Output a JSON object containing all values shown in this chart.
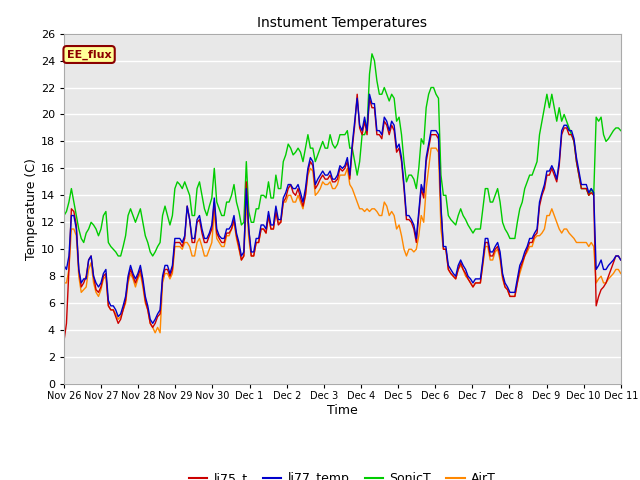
{
  "title": "Instument Temperatures",
  "xlabel": "Time",
  "ylabel": "Temperature (C)",
  "ylim": [
    0,
    26
  ],
  "yticks": [
    0,
    2,
    4,
    6,
    8,
    10,
    12,
    14,
    16,
    18,
    20,
    22,
    24,
    26
  ],
  "bg_color": "#ffffff",
  "plot_bg_color": "#e8e8e8",
  "grid_color": "#ffffff",
  "label_box_text": "EE_flux",
  "label_box_bg": "#ffff99",
  "label_box_edge": "#8b0000",
  "label_box_text_color": "#8b0000",
  "line_colors": {
    "li75_t": "#cc0000",
    "li77_temp": "#0000cc",
    "SonicT": "#00cc00",
    "AirT": "#ff8800"
  },
  "legend_labels": [
    "li75_t",
    "li77_temp",
    "SonicT",
    "AirT"
  ],
  "xtick_labels": [
    "Nov 26",
    "Nov 27",
    "Nov 28",
    "Nov 29",
    "Nov 30",
    "Dec 1",
    "Dec 2",
    "Dec 3",
    "Dec 4",
    "Dec 5",
    "Dec 6",
    "Dec 7",
    "Dec 8",
    "Dec 9",
    "Dec 10",
    "Dec 11"
  ],
  "li75_t": [
    3.2,
    4.5,
    8.5,
    13.0,
    12.8,
    11.8,
    8.5,
    7.2,
    7.5,
    8.0,
    9.2,
    9.5,
    8.0,
    7.0,
    6.8,
    7.2,
    8.0,
    8.2,
    5.8,
    5.5,
    5.5,
    5.0,
    4.5,
    4.8,
    5.5,
    6.2,
    7.8,
    8.5,
    8.0,
    7.5,
    8.0,
    8.5,
    7.5,
    6.2,
    5.5,
    4.5,
    4.2,
    4.5,
    5.0,
    5.2,
    7.8,
    8.5,
    8.5,
    8.0,
    8.5,
    10.5,
    10.5,
    10.5,
    10.2,
    10.8,
    13.2,
    12.2,
    10.5,
    10.5,
    12.0,
    12.2,
    11.2,
    10.5,
    10.5,
    11.0,
    11.5,
    13.5,
    11.2,
    10.8,
    10.5,
    10.5,
    11.2,
    11.2,
    11.5,
    12.2,
    11.0,
    10.2,
    9.2,
    9.5,
    15.0,
    11.5,
    9.5,
    9.5,
    10.5,
    10.5,
    11.5,
    11.5,
    11.2,
    12.5,
    11.5,
    11.5,
    12.8,
    11.8,
    12.0,
    13.5,
    13.8,
    14.5,
    14.8,
    14.2,
    14.0,
    14.5,
    13.8,
    13.2,
    14.0,
    15.8,
    16.5,
    16.2,
    14.5,
    14.8,
    15.2,
    15.5,
    15.2,
    15.2,
    15.5,
    15.0,
    15.0,
    15.2,
    16.0,
    15.8,
    16.0,
    16.5,
    15.2,
    17.5,
    19.2,
    21.5,
    19.0,
    18.5,
    19.5,
    18.5,
    21.2,
    20.5,
    20.5,
    18.5,
    18.5,
    18.2,
    19.5,
    19.2,
    18.5,
    19.2,
    18.8,
    17.2,
    17.5,
    16.5,
    14.5,
    12.2,
    12.2,
    12.0,
    11.5,
    10.5,
    12.5,
    14.5,
    13.8,
    16.5,
    17.5,
    18.5,
    18.5,
    18.5,
    18.2,
    13.0,
    10.0,
    10.0,
    8.5,
    8.2,
    8.0,
    7.8,
    8.5,
    9.0,
    8.5,
    8.2,
    7.8,
    7.5,
    7.2,
    7.5,
    7.5,
    7.5,
    9.0,
    10.5,
    10.5,
    9.5,
    9.5,
    10.0,
    10.2,
    9.5,
    8.0,
    7.2,
    7.0,
    6.5,
    6.5,
    6.5,
    7.5,
    8.5,
    9.0,
    9.5,
    10.0,
    10.5,
    10.5,
    11.0,
    11.2,
    13.2,
    14.0,
    14.5,
    15.5,
    15.5,
    16.0,
    15.5,
    15.0,
    16.2,
    18.5,
    19.0,
    19.0,
    18.5,
    18.5,
    18.0,
    16.5,
    15.5,
    14.5,
    14.5,
    14.5,
    14.0,
    14.2,
    14.0,
    5.8,
    6.5,
    7.0,
    7.2,
    7.5,
    8.0,
    8.5,
    9.0,
    9.5,
    9.5,
    9.2
  ],
  "li77_temp": [
    8.8,
    8.5,
    9.5,
    12.5,
    12.5,
    11.5,
    8.5,
    7.5,
    7.8,
    7.8,
    9.2,
    9.5,
    8.0,
    7.5,
    7.2,
    7.5,
    8.2,
    8.5,
    6.2,
    5.8,
    5.8,
    5.5,
    5.0,
    5.2,
    5.8,
    6.5,
    8.0,
    8.8,
    8.2,
    7.8,
    8.2,
    8.8,
    7.8,
    6.5,
    5.8,
    4.8,
    4.5,
    4.8,
    5.2,
    5.5,
    8.0,
    8.8,
    8.8,
    8.2,
    8.8,
    10.8,
    10.8,
    10.8,
    10.5,
    11.0,
    13.2,
    12.2,
    10.8,
    10.8,
    12.2,
    12.5,
    11.5,
    10.8,
    10.8,
    11.2,
    11.8,
    13.8,
    11.5,
    11.0,
    10.8,
    10.8,
    11.5,
    11.5,
    11.8,
    12.5,
    11.2,
    10.5,
    9.5,
    9.8,
    14.5,
    11.5,
    9.8,
    9.8,
    10.8,
    10.8,
    11.8,
    11.8,
    11.5,
    12.8,
    11.8,
    11.8,
    13.2,
    12.2,
    12.2,
    13.8,
    14.2,
    14.8,
    14.8,
    14.5,
    14.5,
    14.8,
    14.2,
    13.5,
    14.5,
    16.0,
    16.8,
    16.5,
    14.8,
    15.2,
    15.5,
    15.8,
    15.5,
    15.5,
    15.8,
    15.2,
    15.2,
    15.5,
    16.2,
    16.0,
    16.2,
    16.8,
    15.5,
    17.8,
    19.5,
    21.2,
    19.2,
    18.8,
    19.8,
    18.8,
    21.5,
    20.8,
    20.8,
    18.8,
    18.8,
    18.5,
    19.8,
    19.5,
    18.8,
    19.5,
    19.2,
    17.5,
    17.8,
    16.8,
    14.8,
    12.5,
    12.5,
    12.2,
    11.8,
    10.8,
    12.8,
    14.8,
    14.2,
    16.8,
    17.8,
    18.8,
    18.8,
    18.8,
    18.5,
    13.2,
    10.2,
    10.2,
    8.8,
    8.5,
    8.2,
    8.0,
    8.8,
    9.2,
    8.8,
    8.5,
    8.0,
    7.8,
    7.5,
    7.8,
    7.8,
    7.8,
    9.2,
    10.8,
    10.8,
    9.8,
    9.8,
    10.2,
    10.5,
    9.8,
    8.2,
    7.5,
    7.2,
    6.8,
    6.8,
    6.8,
    7.8,
    8.8,
    9.2,
    9.8,
    10.2,
    10.8,
    10.8,
    11.2,
    11.5,
    13.5,
    14.2,
    14.8,
    15.8,
    15.8,
    16.2,
    15.8,
    15.2,
    16.5,
    18.8,
    19.2,
    19.2,
    18.8,
    18.8,
    18.2,
    16.8,
    15.8,
    14.8,
    14.8,
    14.8,
    14.2,
    14.5,
    14.2,
    8.5,
    8.8,
    9.2,
    8.5,
    8.5,
    8.8,
    9.0,
    9.2,
    9.5,
    9.5,
    9.2
  ],
  "SonicT": [
    12.5,
    12.8,
    13.5,
    14.5,
    13.5,
    12.5,
    11.5,
    10.8,
    10.5,
    11.2,
    11.5,
    12.0,
    11.8,
    11.5,
    11.0,
    11.5,
    12.5,
    12.8,
    10.5,
    10.2,
    10.0,
    9.8,
    9.5,
    9.5,
    10.2,
    11.0,
    12.5,
    13.0,
    12.5,
    12.0,
    12.5,
    13.0,
    12.0,
    11.0,
    10.5,
    9.8,
    9.5,
    9.8,
    10.2,
    10.5,
    12.5,
    13.2,
    12.5,
    11.8,
    12.5,
    14.5,
    15.0,
    14.8,
    14.5,
    15.0,
    14.5,
    14.0,
    12.5,
    12.5,
    14.5,
    15.0,
    14.0,
    13.0,
    12.5,
    13.2,
    13.8,
    16.0,
    13.5,
    13.0,
    12.5,
    12.5,
    13.5,
    13.5,
    14.0,
    14.8,
    13.5,
    12.8,
    11.8,
    12.0,
    16.5,
    12.8,
    12.0,
    12.0,
    13.0,
    13.0,
    14.0,
    14.0,
    13.8,
    15.0,
    13.8,
    13.8,
    15.5,
    14.5,
    14.5,
    16.5,
    17.0,
    17.8,
    17.5,
    17.0,
    17.2,
    17.5,
    17.2,
    16.5,
    17.5,
    18.5,
    17.5,
    17.5,
    16.5,
    17.0,
    17.5,
    18.0,
    17.5,
    17.5,
    18.5,
    17.8,
    17.5,
    17.8,
    18.5,
    18.5,
    18.5,
    18.8,
    17.5,
    17.5,
    16.5,
    15.5,
    16.5,
    18.5,
    18.5,
    19.0,
    23.0,
    24.5,
    24.0,
    22.5,
    21.5,
    21.5,
    22.0,
    21.5,
    21.0,
    21.5,
    21.2,
    19.5,
    19.8,
    18.5,
    16.5,
    15.0,
    15.5,
    15.5,
    15.2,
    14.5,
    16.0,
    18.2,
    17.8,
    20.5,
    21.5,
    22.0,
    22.0,
    21.5,
    21.2,
    15.5,
    14.0,
    14.0,
    12.5,
    12.2,
    12.0,
    11.8,
    12.5,
    13.0,
    12.5,
    12.2,
    11.8,
    11.5,
    11.2,
    11.5,
    11.5,
    11.5,
    13.0,
    14.5,
    14.5,
    13.5,
    13.5,
    14.0,
    14.5,
    13.5,
    12.0,
    11.5,
    11.2,
    10.8,
    10.8,
    10.8,
    12.0,
    13.0,
    13.5,
    14.5,
    15.0,
    15.5,
    15.5,
    16.0,
    16.5,
    18.5,
    19.5,
    20.5,
    21.5,
    20.5,
    21.5,
    20.5,
    19.5,
    20.5,
    19.5,
    20.0,
    19.5,
    19.0,
    18.5,
    18.0,
    16.5,
    15.5,
    14.5,
    14.5,
    14.5,
    14.0,
    14.5,
    14.0,
    19.8,
    19.5,
    19.8,
    18.5,
    18.0,
    18.2,
    18.5,
    18.8,
    19.0,
    19.0,
    18.8
  ],
  "AirT": [
    7.5,
    7.5,
    8.5,
    11.5,
    11.5,
    11.0,
    8.0,
    6.8,
    7.0,
    7.2,
    8.5,
    9.0,
    7.5,
    6.8,
    6.5,
    7.0,
    7.8,
    8.0,
    5.8,
    5.5,
    5.5,
    5.2,
    4.8,
    5.0,
    5.5,
    6.0,
    7.5,
    8.2,
    7.8,
    7.2,
    7.8,
    8.2,
    7.2,
    6.0,
    5.5,
    4.5,
    4.2,
    3.8,
    4.2,
    3.8,
    7.5,
    8.2,
    8.2,
    7.8,
    8.2,
    10.2,
    10.2,
    10.2,
    10.0,
    10.5,
    10.5,
    10.2,
    9.5,
    9.5,
    10.5,
    10.8,
    10.2,
    9.5,
    9.5,
    10.0,
    10.5,
    12.8,
    10.8,
    10.5,
    10.2,
    10.2,
    11.0,
    11.0,
    11.5,
    12.0,
    10.8,
    10.0,
    9.2,
    9.5,
    13.5,
    10.8,
    9.5,
    9.5,
    10.5,
    10.5,
    11.5,
    11.5,
    11.2,
    12.5,
    11.5,
    11.5,
    12.8,
    12.0,
    12.0,
    13.5,
    13.5,
    14.0,
    14.0,
    13.5,
    13.5,
    14.0,
    13.5,
    13.0,
    14.0,
    15.5,
    16.0,
    15.8,
    14.0,
    14.2,
    14.5,
    15.0,
    14.8,
    14.8,
    15.0,
    14.5,
    14.5,
    14.8,
    15.5,
    15.5,
    15.5,
    16.0,
    14.8,
    14.5,
    14.0,
    13.5,
    13.0,
    13.0,
    12.8,
    13.0,
    12.8,
    13.0,
    13.0,
    12.8,
    12.5,
    12.5,
    13.5,
    13.2,
    12.5,
    12.8,
    12.5,
    11.5,
    11.8,
    11.0,
    10.0,
    9.5,
    10.0,
    10.0,
    9.8,
    10.0,
    11.0,
    12.5,
    12.0,
    14.5,
    16.0,
    17.5,
    17.5,
    17.5,
    17.2,
    11.5,
    10.0,
    10.0,
    8.5,
    8.2,
    8.0,
    7.8,
    8.5,
    8.8,
    8.5,
    8.0,
    7.8,
    7.5,
    7.2,
    7.5,
    7.5,
    7.5,
    8.8,
    10.2,
    10.2,
    9.2,
    9.2,
    9.8,
    10.0,
    9.2,
    7.8,
    7.2,
    7.0,
    6.5,
    6.5,
    6.5,
    7.5,
    8.2,
    8.8,
    9.5,
    9.8,
    10.2,
    10.2,
    10.8,
    11.0,
    11.0,
    11.2,
    11.5,
    12.5,
    12.5,
    13.0,
    12.5,
    12.0,
    11.5,
    11.2,
    11.5,
    11.5,
    11.2,
    11.0,
    10.8,
    10.5,
    10.5,
    10.5,
    10.5,
    10.5,
    10.2,
    10.5,
    10.2,
    7.5,
    7.8,
    8.0,
    7.5,
    7.5,
    7.8,
    8.0,
    8.2,
    8.5,
    8.5,
    8.2
  ]
}
